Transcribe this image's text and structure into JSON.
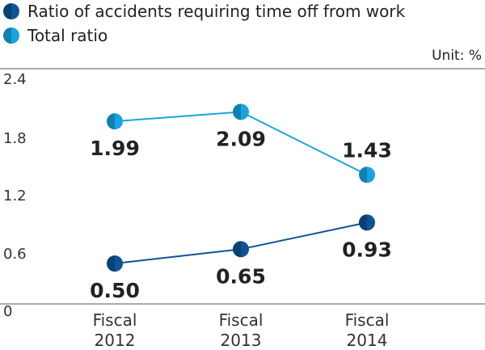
{
  "chart_data": {
    "type": "line",
    "unit_label": "Unit: %",
    "categories": [
      [
        "Fiscal",
        "2012"
      ],
      [
        "Fiscal",
        "2013"
      ],
      [
        "Fiscal",
        "2014"
      ]
    ],
    "y_ticks": [
      "0",
      "0.6",
      "1.2",
      "1.8",
      "2.4"
    ],
    "ylim": [
      0,
      2.4
    ],
    "grid": false,
    "legend_position": "top-left",
    "series": [
      {
        "name": "Ratio of accidents requiring time off from work",
        "values": [
          0.5,
          0.65,
          0.93
        ],
        "labels": [
          "0.50",
          "0.65",
          "0.93"
        ],
        "label_side": [
          "below",
          "below",
          "below"
        ],
        "color": "#0e5494"
      },
      {
        "name": "Total ratio",
        "values": [
          1.99,
          2.09,
          1.43
        ],
        "labels": [
          "1.99",
          "2.09",
          "1.43"
        ],
        "label_side": [
          "below",
          "below",
          "above"
        ],
        "color": "#18a4e0"
      }
    ]
  }
}
